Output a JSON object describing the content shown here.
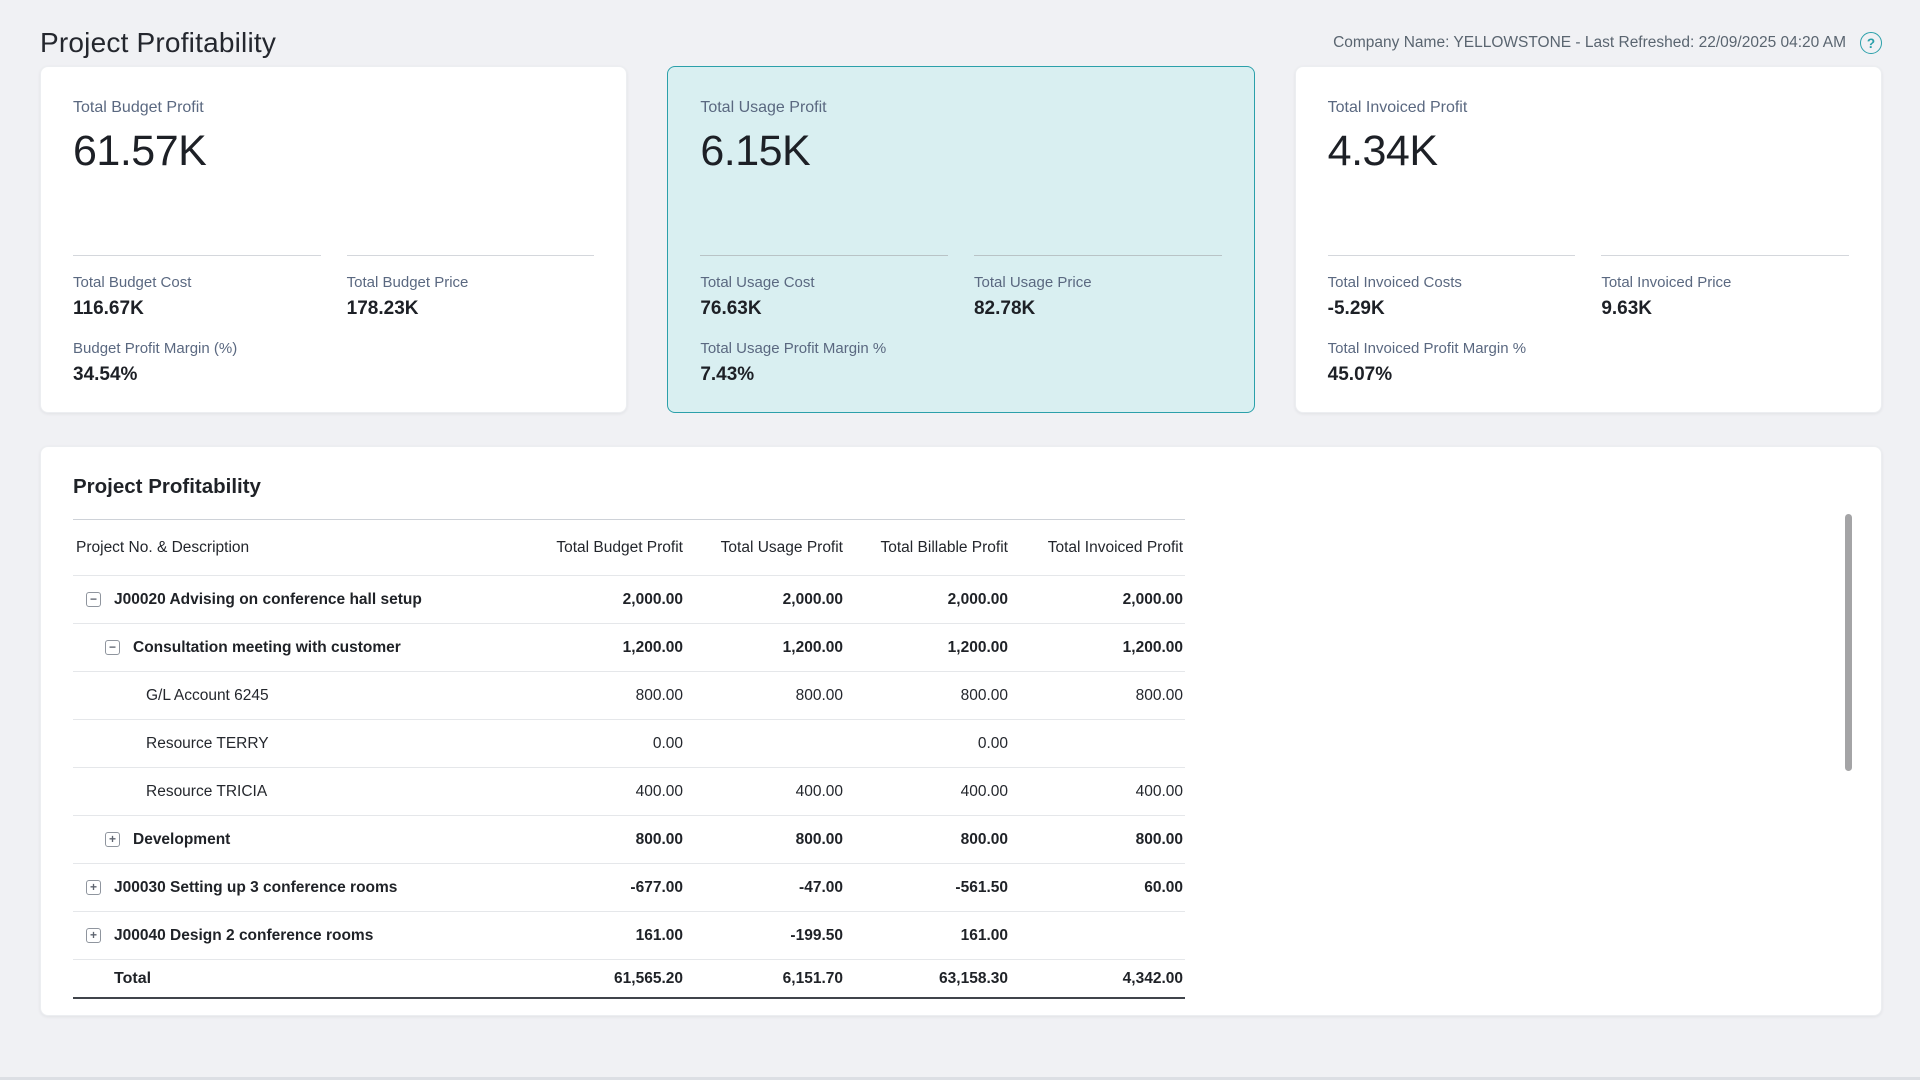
{
  "header": {
    "title": "Project Profitability",
    "meta": "Company Name: YELLOWSTONE - Last Refreshed: 22/09/2025 04:20 AM",
    "help_glyph": "?"
  },
  "colors": {
    "accent_teal": "#2ba0aa",
    "highlight_card_bg": "#d9eff1",
    "page_bg": "#f0f1f4"
  },
  "kpi_cards": [
    {
      "label": "Total Budget Profit",
      "value": "61.57K",
      "sub_metrics": [
        {
          "label": "Total Budget Cost",
          "value": "116.67K"
        },
        {
          "label": "Total Budget Price",
          "value": "178.23K"
        }
      ],
      "margin_metric": {
        "label": "Budget Profit Margin (%)",
        "value": "34.54%"
      }
    },
    {
      "label": "Total Usage Profit",
      "value": "6.15K",
      "highlighted": true,
      "sub_metrics": [
        {
          "label": "Total Usage Cost",
          "value": "76.63K"
        },
        {
          "label": "Total Usage Price",
          "value": "82.78K"
        }
      ],
      "margin_metric": {
        "label": "Total Usage Profit Margin %",
        "value": "7.43%"
      }
    },
    {
      "label": "Total Invoiced Profit",
      "value": "4.34K",
      "sub_metrics": [
        {
          "label": "Total Invoiced Costs",
          "value": "-5.29K"
        },
        {
          "label": "Total Invoiced Price",
          "value": "9.63K"
        }
      ],
      "margin_metric": {
        "label": "Total Invoiced Profit Margin %",
        "value": "45.07%"
      }
    }
  ],
  "table": {
    "title": "Project Profitability",
    "columns": [
      "Project No. & Description",
      "Total Budget Profit",
      "Total Usage Profit",
      "Total Billable Profit",
      "Total Invoiced Profit"
    ],
    "rows": [
      {
        "label": "J00020 Advising on conference hall setup",
        "toggle_glyph": "−",
        "values": [
          "2,000.00",
          "2,000.00",
          "2,000.00",
          "2,000.00"
        ]
      },
      {
        "label": "Consultation meeting with customer",
        "toggle_glyph": "−",
        "values": [
          "1,200.00",
          "1,200.00",
          "1,200.00",
          "1,200.00"
        ]
      },
      {
        "label": "G/L Account 6245",
        "toggle_glyph": "",
        "values": [
          "800.00",
          "800.00",
          "800.00",
          "800.00"
        ]
      },
      {
        "label": "Resource TERRY",
        "toggle_glyph": "",
        "values": [
          "0.00",
          "",
          "0.00",
          ""
        ]
      },
      {
        "label": "Resource TRICIA",
        "toggle_glyph": "",
        "values": [
          "400.00",
          "400.00",
          "400.00",
          "400.00"
        ]
      },
      {
        "label": "Development",
        "toggle_glyph": "+",
        "values": [
          "800.00",
          "800.00",
          "800.00",
          "800.00"
        ]
      },
      {
        "label": "J00030 Setting up 3 conference rooms",
        "toggle_glyph": "+",
        "values": [
          "-677.00",
          "-47.00",
          "-561.50",
          "60.00"
        ]
      },
      {
        "label": "J00040 Design 2 conference rooms",
        "toggle_glyph": "+",
        "values": [
          "161.00",
          "-199.50",
          "161.00",
          ""
        ]
      }
    ],
    "total_row": {
      "label": "Total",
      "values": [
        "61,565.20",
        "6,151.70",
        "63,158.30",
        "4,342.00"
      ]
    }
  }
}
